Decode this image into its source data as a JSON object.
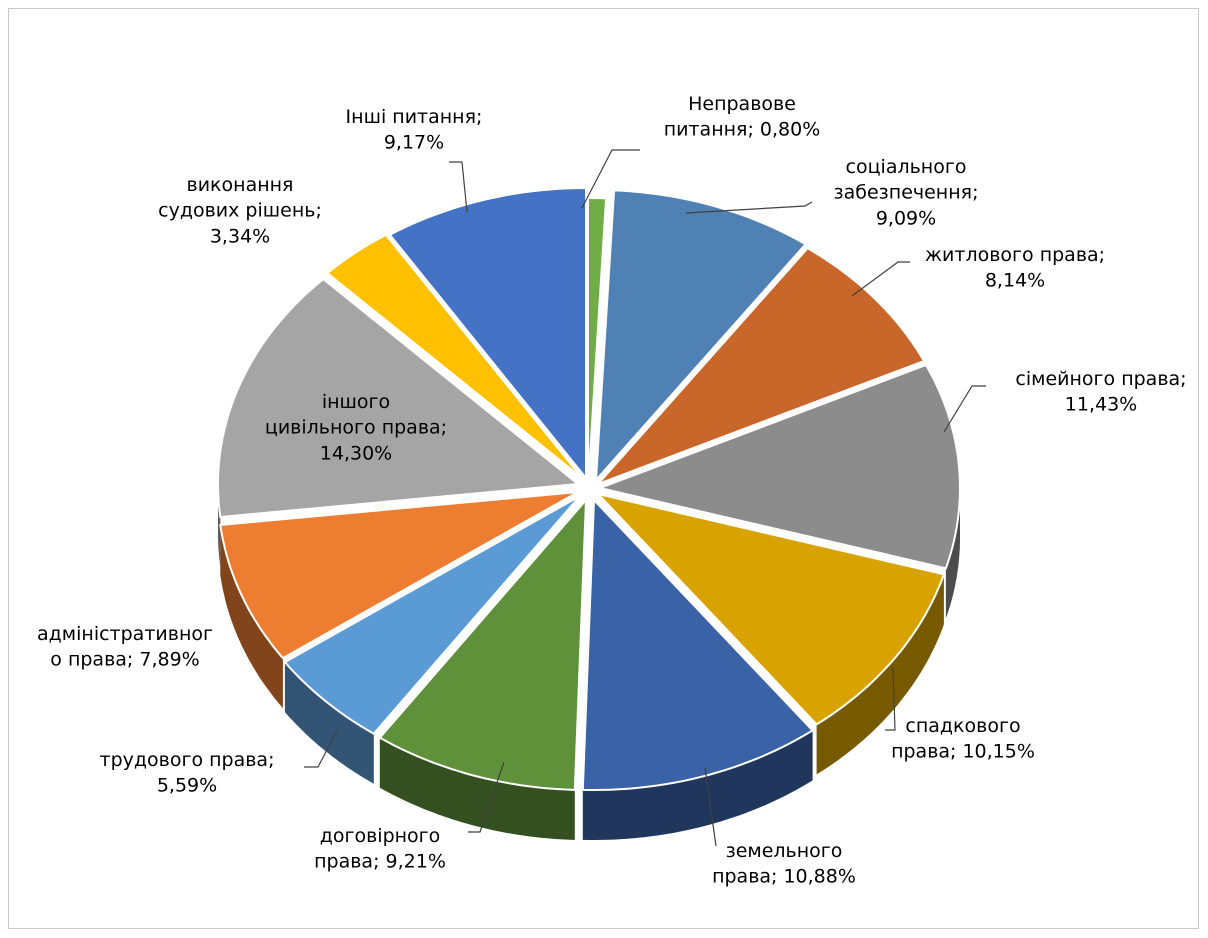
{
  "chart_data": {
    "type": "pie",
    "slices": [
      {
        "label_lines": [
          "Неправове",
          "питання; 0,80%"
        ],
        "value": 0.8,
        "color": "#70ad47"
      },
      {
        "label_lines": [
          "соціального",
          "забезпечення;",
          "9,09%"
        ],
        "value": 9.09,
        "color": "#4f81b5"
      },
      {
        "label_lines": [
          "житлового права;",
          "8,14%"
        ],
        "value": 8.14,
        "color": "#c9662a"
      },
      {
        "label_lines": [
          "сімейного права;",
          "11,43%"
        ],
        "value": 11.43,
        "color": "#8c8c8c"
      },
      {
        "label_lines": [
          "спадкового",
          "права; 10,15%"
        ],
        "value": 10.15,
        "color": "#d8a300"
      },
      {
        "label_lines": [
          "земельного",
          "права; 10,88%"
        ],
        "value": 10.88,
        "color": "#3a62a7"
      },
      {
        "label_lines": [
          "договірного",
          "права; 9,21%"
        ],
        "value": 9.21,
        "color": "#5f913a"
      },
      {
        "label_lines": [
          "трудового права;",
          "5,59%"
        ],
        "value": 5.59,
        "color": "#5b9bd5"
      },
      {
        "label_lines": [
          "адміністративног",
          "о права; 7,89%"
        ],
        "value": 7.89,
        "color": "#ed7d31"
      },
      {
        "label_lines": [
          "іншого",
          "цивільного права;",
          "14,30%"
        ],
        "value": 14.3,
        "color": "#a5a5a5"
      },
      {
        "label_lines": [
          "виконання",
          "судових рішень;",
          "3,34%"
        ],
        "value": 3.34,
        "color": "#ffc000"
      },
      {
        "label_lines": [
          "Інші питання;",
          "9,17%"
        ],
        "value": 9.17,
        "color": "#4472c4"
      }
    ]
  }
}
